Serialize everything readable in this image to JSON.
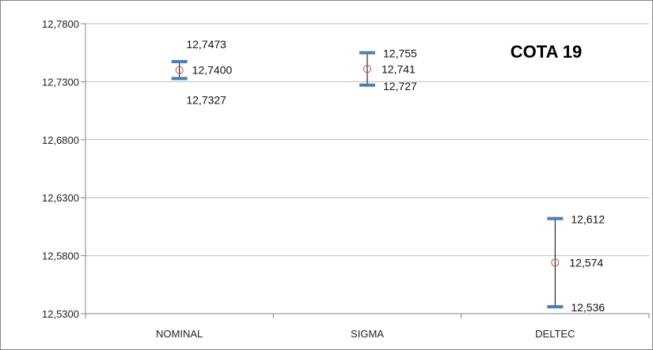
{
  "chart_data": {
    "type": "scatter",
    "title": "COTA 19",
    "categories": [
      "NOMINAL",
      "SIGMA",
      "DELTEC"
    ],
    "ylim": [
      12.53,
      12.78
    ],
    "yticks": [
      12.53,
      12.58,
      12.63,
      12.68,
      12.73,
      12.78
    ],
    "ytick_labels": [
      "12,5300",
      "12,5800",
      "12,6300",
      "12,6800",
      "12,7300",
      "12,7800"
    ],
    "grid": true,
    "series": [
      {
        "values": [
          {
            "category": "NOMINAL",
            "mid": 12.74,
            "upper": 12.7473,
            "lower": 12.7327,
            "mid_label": "12,7400",
            "upper_label": "12,7473",
            "lower_label": "12,7327"
          },
          {
            "category": "SIGMA",
            "mid": 12.741,
            "upper": 12.755,
            "lower": 12.727,
            "mid_label": "12,741",
            "upper_label": "12,755",
            "lower_label": "12,727"
          },
          {
            "category": "DELTEC",
            "mid": 12.574,
            "upper": 12.612,
            "lower": 12.536,
            "mid_label": "12,574",
            "upper_label": "12,612",
            "lower_label": "12,536"
          }
        ]
      }
    ],
    "colors": {
      "cap": "#4a7ebb",
      "whisker": "#000000",
      "marker": "#c0504d",
      "grid": "#bfbfbf",
      "axis": "#868686"
    }
  }
}
